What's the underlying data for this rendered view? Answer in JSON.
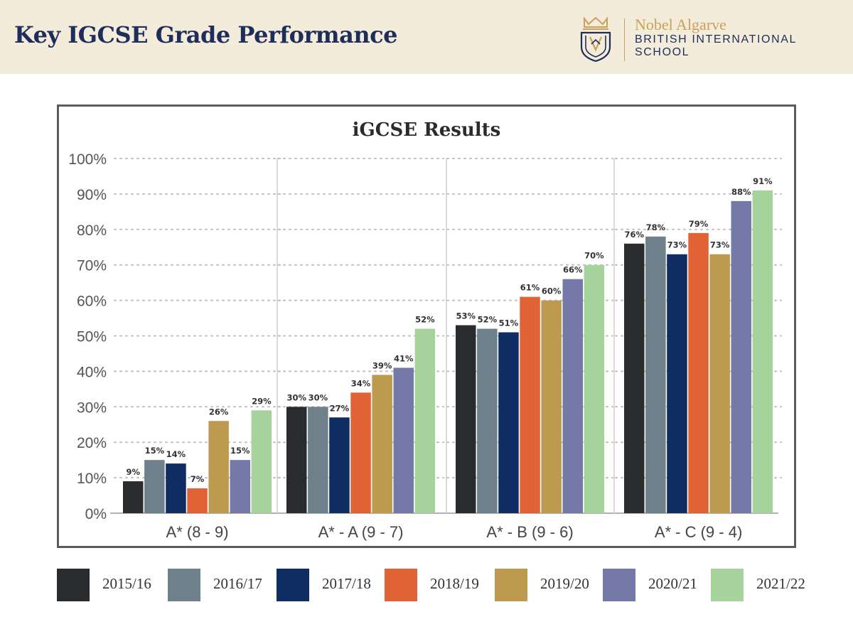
{
  "header": {
    "title": "Key IGCSE Grade Performance",
    "school_name": "Nobel Algarve",
    "school_subtitle": "BRITISH INTERNATIONAL SCHOOL",
    "brand_navy": "#1f2d5a",
    "brand_gold": "#c9a15b",
    "header_bg": "#f4ecda",
    "logo_icon": "crest-shield-icon"
  },
  "chart_data": {
    "type": "bar",
    "title": "iGCSE Results",
    "xlabel": "",
    "ylabel": "",
    "ylim": [
      0,
      100
    ],
    "yticks": [
      "0%",
      "10%",
      "20%",
      "30%",
      "40%",
      "50%",
      "60%",
      "70%",
      "80%",
      "90%",
      "100%"
    ],
    "grid": "dotted horizontal",
    "legend_position": "bottom",
    "categories": [
      "A* (8 - 9)",
      "A* - A (9 - 7)",
      "A* - B (9 - 6)",
      "A* - C (9 - 4)"
    ],
    "series": [
      {
        "name": "2015/16",
        "color": "#2a2b2d",
        "values": [
          9,
          30,
          53,
          76
        ],
        "labels": [
          "9%",
          "30%",
          "53%",
          "76%"
        ]
      },
      {
        "name": "2016/17",
        "color": "#6e8089",
        "values": [
          15,
          30,
          52,
          78
        ],
        "labels": [
          "15%",
          "30%",
          "52%",
          "78%"
        ]
      },
      {
        "name": "2017/18",
        "color": "#102d63",
        "values": [
          14,
          27,
          51,
          73
        ],
        "labels": [
          "14%",
          "27%",
          "51%",
          "73%"
        ]
      },
      {
        "name": "2018/19",
        "color": "#e06336",
        "values": [
          7,
          34,
          61,
          79
        ],
        "labels": [
          "7%",
          "34%",
          "61%",
          "79%"
        ]
      },
      {
        "name": "2019/20",
        "color": "#bc9a4f",
        "values": [
          26,
          39,
          60,
          73
        ],
        "labels": [
          "26%",
          "39%",
          "60%",
          "73%"
        ]
      },
      {
        "name": "2020/21",
        "color": "#7479a8",
        "values": [
          15,
          41,
          66,
          88
        ],
        "labels": [
          "15%",
          "41%",
          "66%",
          "88%"
        ]
      },
      {
        "name": "2021/22",
        "color": "#a6d39c",
        "values": [
          29,
          52,
          70,
          91
        ],
        "labels": [
          "29%",
          "52%",
          "70%",
          "91%"
        ]
      }
    ]
  }
}
